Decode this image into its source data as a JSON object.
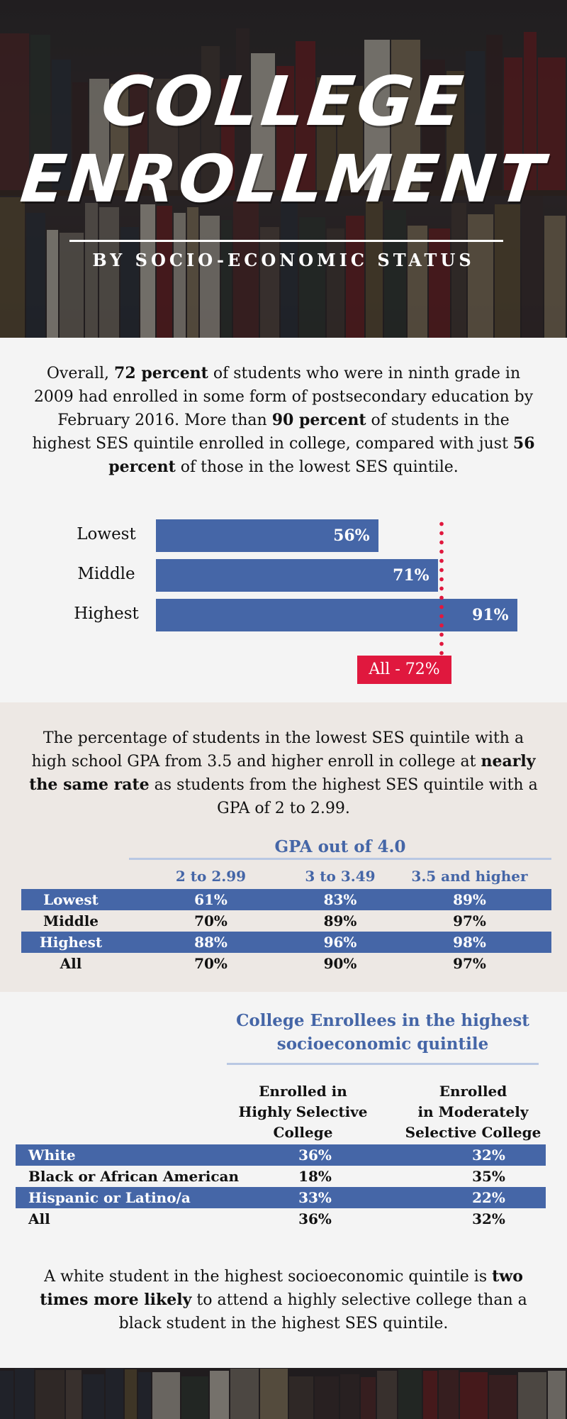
{
  "hero": {
    "title_line1": "COLLEGE",
    "title_line2": "ENROLLMENT",
    "subtitle": "BY SOCIO-ECONOMIC STATUS"
  },
  "intro": {
    "p1": "Overall, ",
    "b1": "72 percent",
    "p2": " of students who were in ninth grade in 2009 had enrolled in some form of postsecondary education by February 2016. More than ",
    "b2": "90 percent",
    "p3": " of students in the highest SES quintile enrolled in college, compared with just ",
    "b3": "56 percent",
    "p4": " of those in the lowest SES quintile."
  },
  "chart_data": {
    "type": "bar",
    "orientation": "horizontal",
    "categories": [
      "Lowest",
      "Middle",
      "Highest"
    ],
    "values": [
      56,
      71,
      91
    ],
    "value_labels": [
      "56%",
      "71%",
      "91%"
    ],
    "reference_line": {
      "value": 72,
      "label": "All - 72%",
      "color": "#e0183e"
    },
    "bar_color": "#4566a7",
    "xlim": [
      0,
      100
    ]
  },
  "gpa": {
    "p1": "The percentage of students in the lowest SES quintile with a high school GPA from 3.5 and higher enroll in college at ",
    "b1": "nearly the same rate",
    "p2": " as students from the highest SES quintile with a GPA of 2 to 2.99.",
    "title": "GPA out of 4.0",
    "columns": [
      "2 to 2.99",
      "3 to 3.49",
      "3.5 and higher"
    ],
    "rows": [
      {
        "label": "Lowest",
        "values": [
          "61%",
          "83%",
          "89%"
        ]
      },
      {
        "label": "Middle",
        "values": [
          "70%",
          "89%",
          "97%"
        ]
      },
      {
        "label": "Highest",
        "values": [
          "88%",
          "96%",
          "98%"
        ]
      },
      {
        "label": "All",
        "values": [
          "70%",
          "90%",
          "97%"
        ]
      }
    ]
  },
  "enrollees": {
    "title_line1": "College Enrollees in the highest",
    "title_line2": "socioeconomic quintile",
    "col1": [
      "Enrolled in",
      "Highly Selective",
      "College"
    ],
    "col2": [
      "Enrolled",
      "in Moderately",
      "Selective College"
    ],
    "rows": [
      {
        "label": "White",
        "values": [
          "36%",
          "32%"
        ]
      },
      {
        "label": "Black or African American",
        "values": [
          "18%",
          "35%"
        ]
      },
      {
        "label": "Hispanic or Latino/a",
        "values": [
          "33%",
          "22%"
        ]
      },
      {
        "label": "All",
        "values": [
          "36%",
          "32%"
        ]
      }
    ]
  },
  "closing": {
    "p1": "A white student in the highest socioeconomic quintile is ",
    "b1": "two times more likely",
    "p2": " to attend a highly selective college than a black student in the highest SES quintile."
  },
  "colors": {
    "accent": "#4566a7",
    "highlight": "#e0183e",
    "rule": "#b9c8e3"
  }
}
